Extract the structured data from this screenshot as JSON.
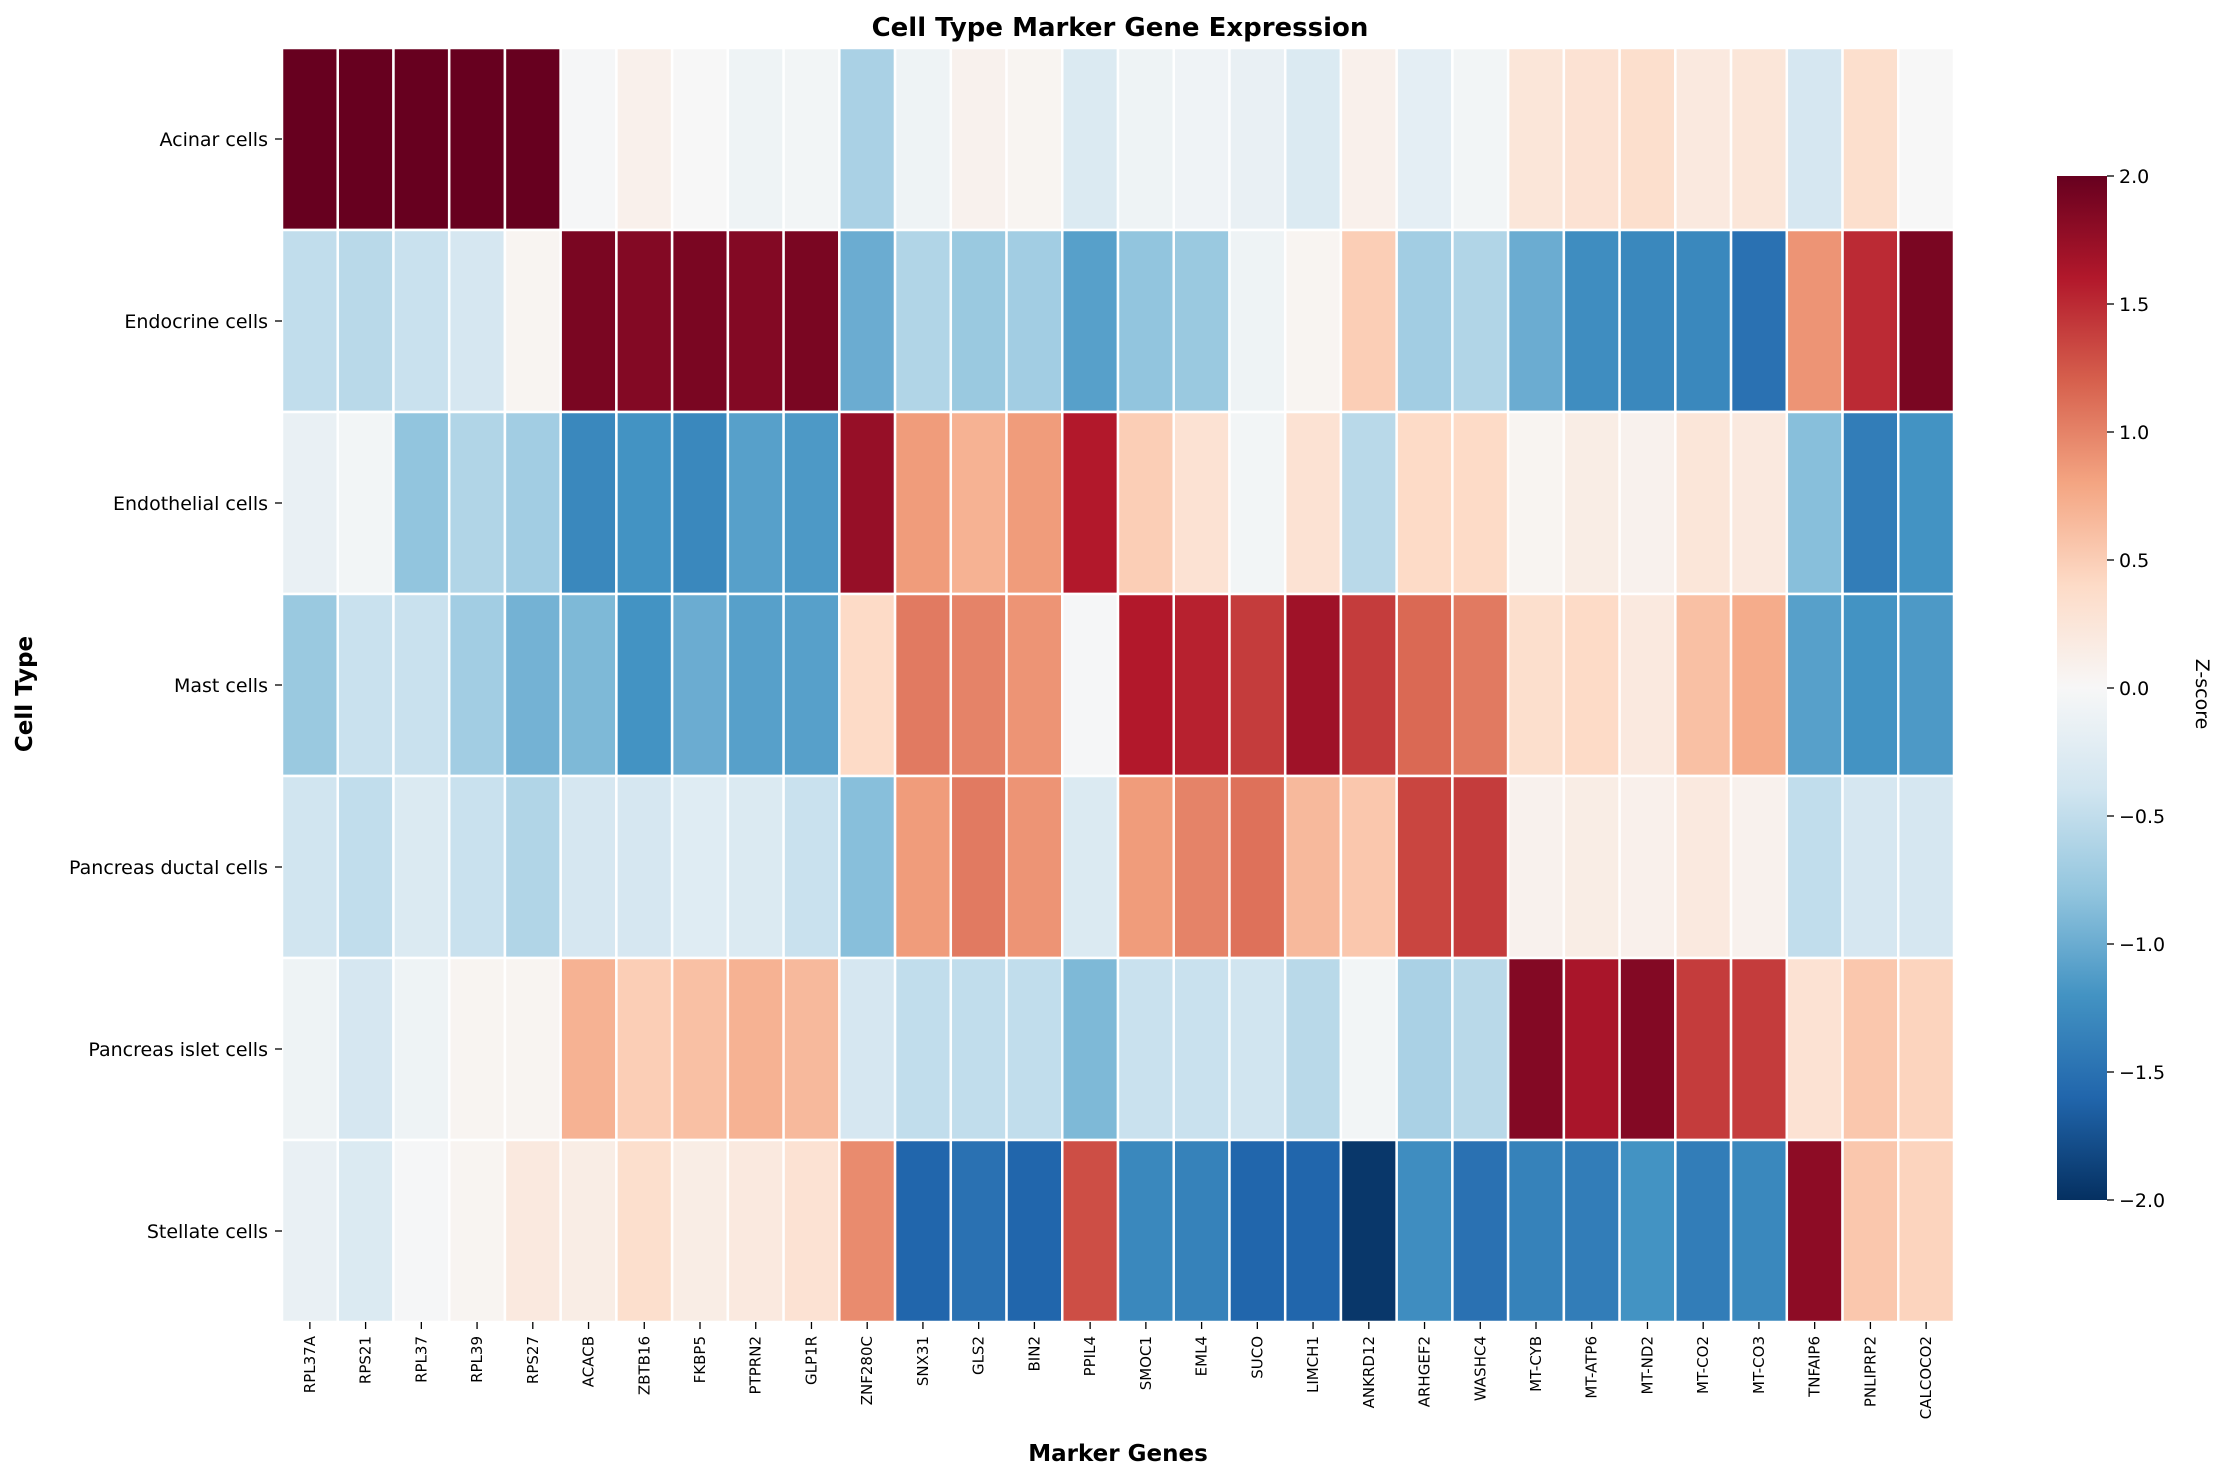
{
  "chart_data": {
    "type": "heatmap",
    "title": "Cell Type Marker Gene Expression",
    "xlabel": "Marker Genes",
    "ylabel": "Cell Type",
    "colorbar_label": "Z-score",
    "colormap": "RdBu_r",
    "vmin": -2.0,
    "vmax": 2.0,
    "colorbar_ticks": [
      2.0,
      1.5,
      1.0,
      0.5,
      0.0,
      -0.5,
      -1.0,
      -1.5,
      -2.0
    ],
    "colorbar_tick_labels": [
      "2.0",
      "1.5",
      "1.0",
      "0.5",
      "0.0",
      "−0.5",
      "−1.0",
      "−1.5",
      "−2.0"
    ],
    "rows": [
      "Acinar cells",
      "Endocrine cells",
      "Endothelial cells",
      "Mast cells",
      "Pancreas ductal cells",
      "Pancreas islet cells",
      "Stellate cells"
    ],
    "columns": [
      "RPL37A",
      "RPS21",
      "RPL37",
      "RPL39",
      "RPS27",
      "ACACB",
      "ZBTB16",
      "FKBP5",
      "PTPRN2",
      "GLP1R",
      "ZNF280C",
      "SNX31",
      "GLS2",
      "BIN2",
      "PPIL4",
      "SMOC1",
      "EML4",
      "SUCO",
      "LIMCH1",
      "ANKRD12",
      "ARHGEF2",
      "WASHC4",
      "MT-CYB",
      "MT-ATP6",
      "MT-ND2",
      "MT-CO2",
      "MT-CO3",
      "TNFAIP6",
      "PNLIPRP2",
      "CALCOCO2"
    ],
    "values": [
      [
        2.0,
        2.0,
        2.0,
        2.0,
        2.0,
        -0.02,
        0.1,
        0.0,
        -0.1,
        -0.05,
        -0.65,
        -0.1,
        0.08,
        0.05,
        -0.3,
        -0.1,
        -0.08,
        -0.15,
        -0.3,
        0.1,
        -0.2,
        -0.05,
        0.25,
        0.3,
        0.35,
        0.2,
        0.25,
        -0.35,
        0.35,
        0.0
      ],
      [
        -0.5,
        -0.55,
        -0.45,
        -0.35,
        0.05,
        1.9,
        1.85,
        1.9,
        1.85,
        1.9,
        -1.0,
        -0.6,
        -0.75,
        -0.7,
        -1.1,
        -0.8,
        -0.75,
        -0.1,
        0.05,
        0.5,
        -0.7,
        -0.6,
        -1.0,
        -1.25,
        -1.3,
        -1.3,
        -1.5,
        0.9,
        1.5,
        1.9
      ],
      [
        -0.15,
        -0.05,
        -0.8,
        -0.6,
        -0.7,
        -1.3,
        -1.2,
        -1.3,
        -1.1,
        -1.15,
        1.75,
        0.85,
        0.7,
        0.85,
        1.6,
        0.5,
        0.3,
        -0.05,
        0.3,
        -0.55,
        0.4,
        0.4,
        0.05,
        0.15,
        0.08,
        0.25,
        0.2,
        -0.85,
        -1.4,
        -1.2
      ],
      [
        -0.75,
        -0.45,
        -0.45,
        -0.7,
        -0.95,
        -0.9,
        -1.2,
        -1.0,
        -1.1,
        -1.1,
        0.4,
        1.05,
        1.0,
        0.9,
        -0.02,
        1.6,
        1.55,
        1.4,
        1.7,
        1.4,
        1.15,
        1.05,
        0.35,
        0.4,
        0.2,
        0.6,
        0.75,
        -1.1,
        -1.2,
        -1.15
      ],
      [
        -0.4,
        -0.5,
        -0.3,
        -0.45,
        -0.6,
        -0.35,
        -0.35,
        -0.25,
        -0.3,
        -0.45,
        -0.85,
        0.85,
        1.05,
        0.9,
        -0.3,
        0.85,
        1.0,
        1.1,
        0.65,
        0.55,
        1.35,
        1.4,
        0.08,
        0.15,
        0.1,
        0.2,
        0.08,
        -0.5,
        -0.35,
        -0.35
      ],
      [
        -0.1,
        -0.35,
        -0.1,
        0.05,
        0.05,
        0.7,
        0.5,
        0.6,
        0.7,
        0.65,
        -0.35,
        -0.5,
        -0.5,
        -0.5,
        -0.9,
        -0.45,
        -0.45,
        -0.4,
        -0.55,
        -0.05,
        -0.65,
        -0.55,
        1.85,
        1.65,
        1.85,
        1.4,
        1.4,
        0.3,
        0.55,
        0.45
      ],
      [
        -0.15,
        -0.3,
        -0.02,
        0.05,
        0.2,
        0.15,
        0.35,
        0.15,
        0.2,
        0.3,
        0.95,
        -1.6,
        -1.5,
        -1.6,
        1.3,
        -1.3,
        -1.35,
        -1.6,
        -1.6,
        -1.95,
        -1.25,
        -1.5,
        -1.35,
        -1.4,
        -1.2,
        -1.4,
        -1.3,
        1.8,
        0.55,
        0.45
      ]
    ]
  }
}
